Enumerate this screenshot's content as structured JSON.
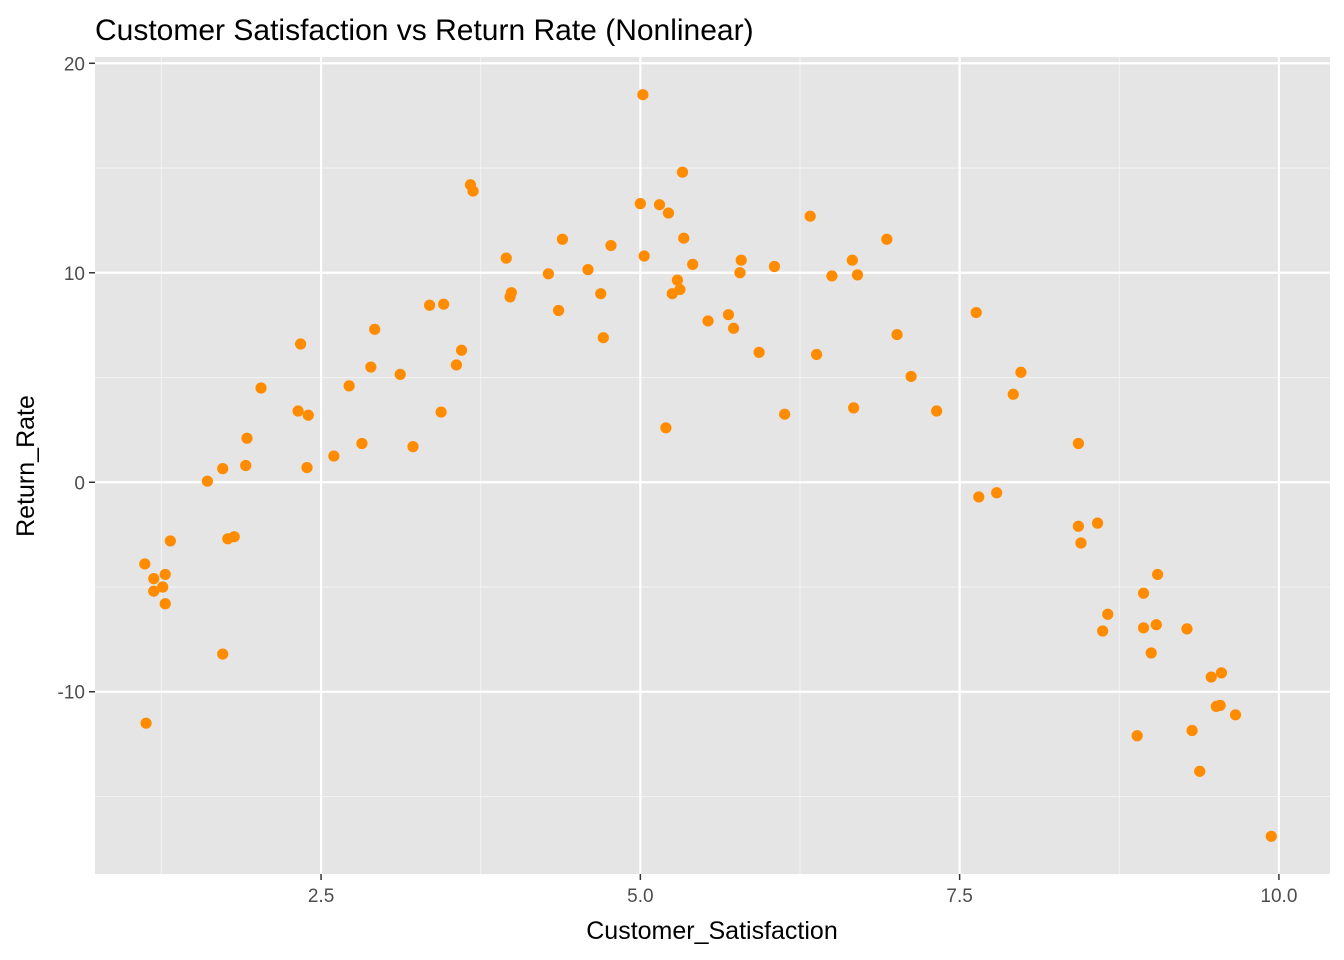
{
  "chart_data": {
    "type": "scatter",
    "title": "Customer Satisfaction vs Return Rate (Nonlinear)",
    "xlabel": "Customer_Satisfaction",
    "ylabel": "Return_Rate",
    "xlim": [
      0.73,
      10.4
    ],
    "ylim": [
      -18.7,
      20.3
    ],
    "x_ticks": [
      2.5,
      5.0,
      7.5,
      10.0
    ],
    "x_tick_labels": [
      "2.5",
      "5.0",
      "7.5",
      "10.0"
    ],
    "y_ticks": [
      -10,
      0,
      10,
      20
    ],
    "y_tick_labels": [
      "-10",
      "0",
      "10",
      "20"
    ],
    "grid": true,
    "colors": {
      "panel": "#e5e5e5",
      "grid_major": "#ffffff",
      "grid_minor": "#f2f2f2",
      "point": "#ff8c00"
    },
    "points": [
      [
        1.12,
        -3.9
      ],
      [
        1.13,
        -11.5
      ],
      [
        1.19,
        -4.6
      ],
      [
        1.19,
        -5.2
      ],
      [
        1.26,
        -5.0
      ],
      [
        1.28,
        -4.4
      ],
      [
        1.28,
        -5.8
      ],
      [
        1.32,
        -2.8
      ],
      [
        1.61,
        0.05
      ],
      [
        1.73,
        0.65
      ],
      [
        1.73,
        -8.2
      ],
      [
        1.77,
        -2.7
      ],
      [
        1.82,
        -2.6
      ],
      [
        1.91,
        0.8
      ],
      [
        1.92,
        2.1
      ],
      [
        2.03,
        4.5
      ],
      [
        2.32,
        3.4
      ],
      [
        2.34,
        6.6
      ],
      [
        2.39,
        0.7
      ],
      [
        2.4,
        3.2
      ],
      [
        2.6,
        1.25
      ],
      [
        2.72,
        4.6
      ],
      [
        2.82,
        1.85
      ],
      [
        2.89,
        5.5
      ],
      [
        2.92,
        7.3
      ],
      [
        3.12,
        5.15
      ],
      [
        3.22,
        1.7
      ],
      [
        3.35,
        8.45
      ],
      [
        3.44,
        3.35
      ],
      [
        3.46,
        8.5
      ],
      [
        3.56,
        5.6
      ],
      [
        3.6,
        6.3
      ],
      [
        3.67,
        14.2
      ],
      [
        3.69,
        13.9
      ],
      [
        3.95,
        10.7
      ],
      [
        3.98,
        8.85
      ],
      [
        3.99,
        9.05
      ],
      [
        4.28,
        9.95
      ],
      [
        4.36,
        8.2
      ],
      [
        4.39,
        11.6
      ],
      [
        4.59,
        10.15
      ],
      [
        4.69,
        9.0
      ],
      [
        4.71,
        6.9
      ],
      [
        4.77,
        11.3
      ],
      [
        5.0,
        13.3
      ],
      [
        5.02,
        18.5
      ],
      [
        5.03,
        10.8
      ],
      [
        5.15,
        13.25
      ],
      [
        5.2,
        2.6
      ],
      [
        5.22,
        12.85
      ],
      [
        5.25,
        9.0
      ],
      [
        5.29,
        9.65
      ],
      [
        5.31,
        9.2
      ],
      [
        5.33,
        14.8
      ],
      [
        5.34,
        11.65
      ],
      [
        5.41,
        10.4
      ],
      [
        5.53,
        7.7
      ],
      [
        5.69,
        8.0
      ],
      [
        5.73,
        7.35
      ],
      [
        5.78,
        10.0
      ],
      [
        5.79,
        10.6
      ],
      [
        5.93,
        6.2
      ],
      [
        6.05,
        10.3
      ],
      [
        6.13,
        3.25
      ],
      [
        6.33,
        12.7
      ],
      [
        6.38,
        6.1
      ],
      [
        6.5,
        9.85
      ],
      [
        6.66,
        10.6
      ],
      [
        6.67,
        3.55
      ],
      [
        6.7,
        9.9
      ],
      [
        6.93,
        11.6
      ],
      [
        7.01,
        7.05
      ],
      [
        7.12,
        5.05
      ],
      [
        7.32,
        3.4
      ],
      [
        7.63,
        8.1
      ],
      [
        7.65,
        -0.7
      ],
      [
        7.79,
        -0.5
      ],
      [
        7.92,
        4.2
      ],
      [
        7.98,
        5.25
      ],
      [
        8.43,
        1.85
      ],
      [
        8.43,
        -2.1
      ],
      [
        8.45,
        -2.9
      ],
      [
        8.58,
        -1.95
      ],
      [
        8.62,
        -7.1
      ],
      [
        8.66,
        -6.3
      ],
      [
        8.89,
        -12.1
      ],
      [
        8.94,
        -6.95
      ],
      [
        8.94,
        -5.3
      ],
      [
        9.0,
        -8.15
      ],
      [
        9.04,
        -6.8
      ],
      [
        9.05,
        -4.4
      ],
      [
        9.28,
        -7.0
      ],
      [
        9.32,
        -11.85
      ],
      [
        9.38,
        -13.8
      ],
      [
        9.47,
        -9.3
      ],
      [
        9.51,
        -10.7
      ],
      [
        9.54,
        -10.65
      ],
      [
        9.55,
        -9.1
      ],
      [
        9.66,
        -11.1
      ],
      [
        9.94,
        -16.9
      ]
    ]
  }
}
